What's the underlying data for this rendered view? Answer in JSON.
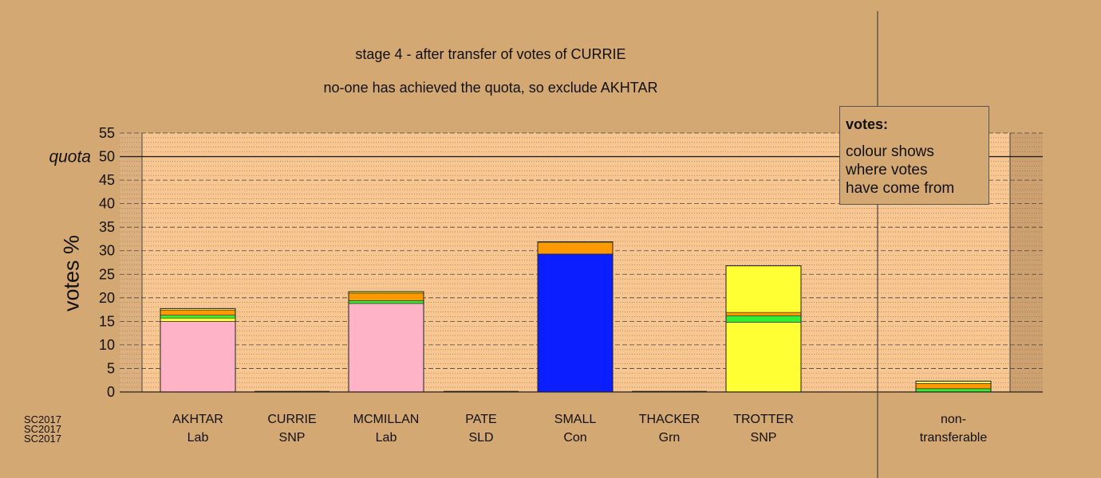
{
  "chart_data": {
    "type": "bar",
    "title": "stage 4 - after transfer of votes of CURRIE",
    "subtitle": "no-one has achieved the quota, so exclude AKHTAR",
    "ylabel": "votes %",
    "ylim": [
      0,
      55
    ],
    "yticks": [
      0,
      5,
      10,
      15,
      20,
      25,
      30,
      35,
      40,
      45,
      50,
      55
    ],
    "quota": {
      "label": "quota",
      "value": 50
    },
    "grid": true,
    "categories": [
      {
        "name": "AKHTAR",
        "party": "Lab"
      },
      {
        "name": "CURRIE",
        "party": "SNP"
      },
      {
        "name": "MCMILLAN",
        "party": "Lab"
      },
      {
        "name": "PATE",
        "party": "SLD"
      },
      {
        "name": "SMALL",
        "party": "Con"
      },
      {
        "name": "THACKER",
        "party": "Grn"
      },
      {
        "name": "TROTTER",
        "party": "SNP"
      },
      {
        "name": "",
        "party": ""
      },
      {
        "name": "non-",
        "party": "transferable"
      }
    ],
    "stacks": [
      [
        {
          "value": 15.0,
          "color": "#ffb3c6"
        },
        {
          "value": 0.7,
          "color": "#ffff33"
        },
        {
          "value": 0.6,
          "color": "#33ee33"
        },
        {
          "value": 1.1,
          "color": "#ff9900"
        },
        {
          "value": 0.3,
          "color": "#ffff33"
        }
      ],
      [],
      [
        {
          "value": 18.8,
          "color": "#ffb3c6"
        },
        {
          "value": 0.6,
          "color": "#33ee33"
        },
        {
          "value": 1.6,
          "color": "#ff9900"
        },
        {
          "value": 0.3,
          "color": "#ffff33"
        }
      ],
      [],
      [
        {
          "value": 29.3,
          "color": "#0a1eff"
        },
        {
          "value": 2.4,
          "color": "#ff9900"
        },
        {
          "value": 0.2,
          "color": "#ffff33"
        }
      ],
      [],
      [
        {
          "value": 14.8,
          "color": "#ffff33"
        },
        {
          "value": 1.4,
          "color": "#33ee33"
        },
        {
          "value": 0.7,
          "color": "#ff9900"
        },
        {
          "value": 9.9,
          "color": "#ffff33"
        }
      ],
      [],
      [
        {
          "value": 0.7,
          "color": "#33ee33"
        },
        {
          "value": 1.1,
          "color": "#ff9900"
        },
        {
          "value": 0.5,
          "color": "#ffff33"
        }
      ]
    ]
  },
  "legend": {
    "heading": "votes:",
    "lines": [
      "colour shows",
      "where votes",
      "have come from"
    ]
  },
  "watermark": [
    "SC2017",
    "SC2017",
    "SC2017"
  ],
  "colors": {
    "background": "#d4a872",
    "plot_area": "#f8c690"
  }
}
